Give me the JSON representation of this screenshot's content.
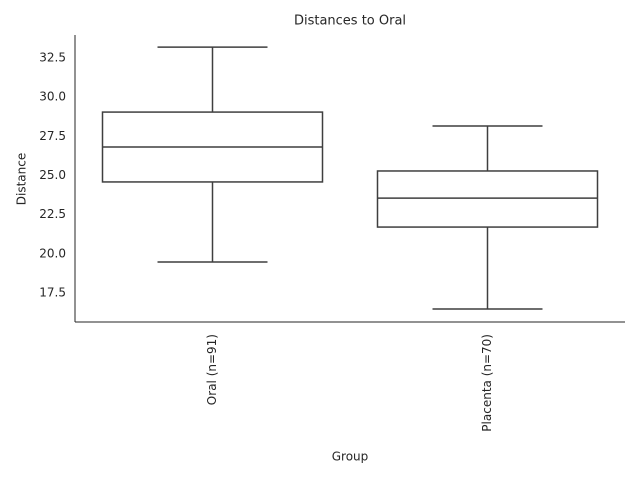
{
  "chart_data": {
    "type": "box",
    "title": "Distances to Oral",
    "x_label": "Group",
    "y_label": "Distance",
    "categories": [
      "Oral (n=91)",
      "Placenta (n=70)"
    ],
    "boxes": [
      {
        "whislo": 19.48,
        "q1": 24.59,
        "med": 26.82,
        "q3": 29.05,
        "whishi": 33.2
      },
      {
        "whislo": 16.48,
        "q1": 21.71,
        "med": 23.56,
        "q3": 25.29,
        "whishi": 28.16
      }
    ],
    "color": "#3f3f3f",
    "fill": "#ffffff",
    "ylim": [
      15.65,
      33.97
    ],
    "yticks": [
      17.5,
      20.0,
      22.5,
      25.0,
      27.5,
      30.0,
      32.5
    ],
    "grid": false
  }
}
